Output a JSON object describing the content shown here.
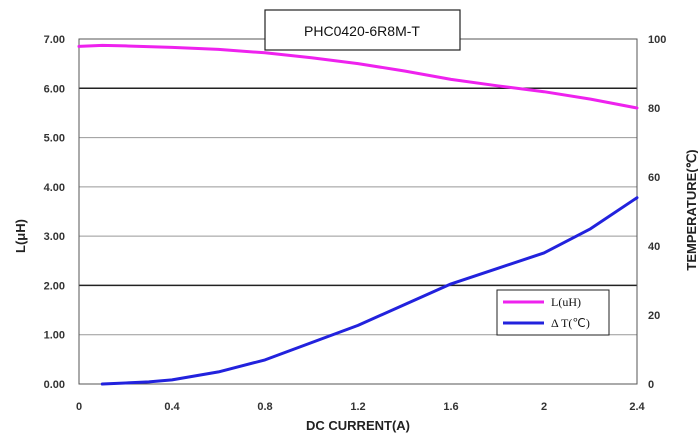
{
  "chart_data": {
    "type": "line",
    "title": "PHC0420-6R8M-T",
    "xlabel": "DC CURRENT(A)",
    "ylabel_left": "L(μH)",
    "ylabel_right": "TEMPERATURE(℃)",
    "x_ticks": [
      "0",
      "0.4",
      "0.8",
      "1.2",
      "1.6",
      "2",
      "2.4"
    ],
    "y_left_ticks": [
      "0.00",
      "1.00",
      "2.00",
      "3.00",
      "4.00",
      "5.00",
      "6.00",
      "7.00"
    ],
    "y_right_ticks": [
      "0",
      "20",
      "40",
      "60",
      "80",
      "100"
    ],
    "xlim": [
      0,
      2.4
    ],
    "ylim_left": [
      0,
      7
    ],
    "ylim_right": [
      0,
      100
    ],
    "grid": "horizontal",
    "legend_position": "bottom-right",
    "series": [
      {
        "name": "L(uH)",
        "axis": "left",
        "color": "#ee22ee",
        "x": [
          0,
          0.1,
          0.2,
          0.4,
          0.6,
          0.8,
          1.0,
          1.2,
          1.4,
          1.6,
          1.8,
          2.0,
          2.2,
          2.4
        ],
        "y": [
          6.85,
          6.87,
          6.86,
          6.83,
          6.79,
          6.72,
          6.62,
          6.5,
          6.35,
          6.18,
          6.05,
          5.93,
          5.78,
          5.6
        ]
      },
      {
        "name": "Δ T(℃)",
        "axis": "right",
        "color": "#2222dd",
        "x": [
          0.1,
          0.2,
          0.3,
          0.4,
          0.6,
          0.8,
          1.0,
          1.2,
          1.4,
          1.6,
          1.8,
          2.0,
          2.2,
          2.4
        ],
        "y": [
          0,
          0.3,
          0.6,
          1.2,
          3.5,
          7,
          12,
          17,
          23,
          29,
          33.5,
          38,
          45,
          54
        ]
      }
    ]
  }
}
